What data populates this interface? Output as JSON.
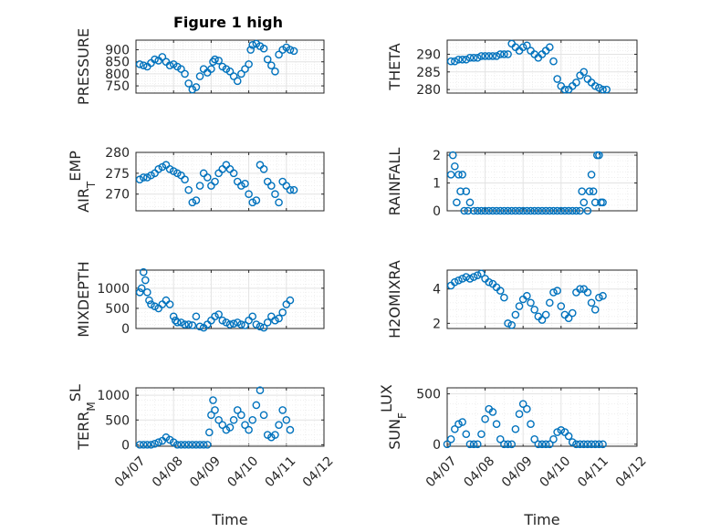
{
  "figure": {
    "title": "Figure 1 high",
    "colors": {
      "marker": "#0072BD",
      "grid": "#e3e3e3",
      "axis": "#262626",
      "background": "#ffffff"
    }
  },
  "chart_data": [
    {
      "type": "scatter",
      "marker": "circle",
      "grid": true,
      "ylabel": "PRESSURE",
      "ylabel_sub": "",
      "xlim": [
        "2013-04-07",
        "2013-04-12"
      ],
      "xticks": [
        "04/07",
        "04/08",
        "04/09",
        "04/10",
        "04/11",
        "04/12"
      ],
      "xtick_labels_visible": false,
      "xlabel": "",
      "ylim": [
        720,
        940
      ],
      "yticks": [
        750,
        800,
        850,
        900
      ],
      "x_days": [
        0.1,
        0.2,
        0.3,
        0.4,
        0.5,
        0.6,
        0.7,
        0.8,
        0.9,
        1.0,
        1.1,
        1.2,
        1.3,
        1.4,
        1.5,
        1.6,
        1.7,
        1.8,
        1.9,
        2.0,
        2.05,
        2.1,
        2.2,
        2.3,
        2.4,
        2.5,
        2.6,
        2.7,
        2.8,
        2.9,
        3.0,
        3.05,
        3.1,
        3.2,
        3.3,
        3.4,
        3.5,
        3.6,
        3.7,
        3.8,
        3.9,
        4.0,
        4.1,
        4.2
      ],
      "y": [
        840,
        835,
        830,
        845,
        860,
        855,
        870,
        850,
        835,
        840,
        830,
        820,
        800,
        760,
        735,
        745,
        790,
        820,
        805,
        820,
        850,
        860,
        855,
        830,
        820,
        810,
        790,
        770,
        800,
        820,
        840,
        900,
        920,
        925,
        915,
        905,
        860,
        835,
        810,
        880,
        900,
        910,
        900,
        895
      ]
    },
    {
      "type": "scatter",
      "marker": "circle",
      "grid": true,
      "ylabel": "THETA",
      "ylabel_sub": "",
      "xlim": [
        "2013-04-07",
        "2013-04-12"
      ],
      "xticks": [
        "04/07",
        "04/08",
        "04/09",
        "04/10",
        "04/11",
        "04/12"
      ],
      "xtick_labels_visible": false,
      "xlabel": "",
      "ylim": [
        279,
        294
      ],
      "yticks": [
        280,
        285,
        290
      ],
      "x_days": [
        0.1,
        0.2,
        0.3,
        0.4,
        0.5,
        0.6,
        0.7,
        0.8,
        0.9,
        1.0,
        1.1,
        1.2,
        1.3,
        1.4,
        1.5,
        1.6,
        1.7,
        1.8,
        1.9,
        2.0,
        2.1,
        2.2,
        2.3,
        2.4,
        2.5,
        2.6,
        2.7,
        2.8,
        2.9,
        3.0,
        3.1,
        3.2,
        3.3,
        3.4,
        3.5,
        3.6,
        3.7,
        3.8,
        3.9,
        4.0,
        4.1,
        4.2
      ],
      "y": [
        288,
        288,
        288.5,
        288.5,
        288.5,
        289,
        289,
        289,
        289.5,
        289.5,
        289.5,
        289.5,
        289.5,
        290,
        290,
        290,
        293,
        292,
        291,
        292,
        292.5,
        291,
        290,
        289,
        290,
        291,
        292,
        288,
        283,
        281,
        280,
        280,
        281,
        282,
        284,
        285,
        283,
        282,
        281,
        280.5,
        280,
        280
      ]
    },
    {
      "type": "scatter",
      "marker": "circle",
      "grid": true,
      "ylabel": "AIR",
      "ylabel_sub": "T",
      "ylabel_suffix": "EMP",
      "xlim": [
        "2013-04-07",
        "2013-04-12"
      ],
      "xticks": [
        "04/07",
        "04/08",
        "04/09",
        "04/10",
        "04/11",
        "04/12"
      ],
      "xtick_labels_visible": false,
      "xlabel": "",
      "ylim": [
        266,
        280
      ],
      "yticks": [
        270,
        275,
        280
      ],
      "x_days": [
        0.1,
        0.2,
        0.3,
        0.4,
        0.5,
        0.6,
        0.7,
        0.8,
        0.9,
        1.0,
        1.1,
        1.2,
        1.3,
        1.4,
        1.5,
        1.6,
        1.7,
        1.8,
        1.9,
        2.0,
        2.1,
        2.2,
        2.3,
        2.4,
        2.5,
        2.6,
        2.7,
        2.8,
        2.9,
        3.0,
        3.1,
        3.2,
        3.3,
        3.4,
        3.5,
        3.6,
        3.7,
        3.8,
        3.9,
        4.0,
        4.1,
        4.2
      ],
      "y": [
        273.5,
        274,
        274,
        274.5,
        275,
        276,
        276.5,
        277,
        276,
        275.5,
        275,
        274.5,
        273.5,
        271,
        268,
        268.5,
        272,
        275,
        274,
        272,
        273,
        275,
        276,
        277,
        276,
        275,
        273,
        272,
        272.5,
        270,
        268,
        268.5,
        277,
        276,
        273,
        272,
        270,
        268,
        273,
        272,
        271,
        271
      ]
    },
    {
      "type": "scatter",
      "marker": "circle",
      "grid": true,
      "ylabel": "RAINFALL",
      "ylabel_sub": "",
      "xlim": [
        "2013-04-07",
        "2013-04-12"
      ],
      "xticks": [
        "04/07",
        "04/08",
        "04/09",
        "04/10",
        "04/11",
        "04/12"
      ],
      "xtick_labels_visible": false,
      "xlabel": "",
      "ylim": [
        0,
        2.1
      ],
      "yticks": [
        0,
        1,
        2
      ],
      "x_days": [
        0.1,
        0.15,
        0.2,
        0.25,
        0.3,
        0.35,
        0.4,
        0.45,
        0.5,
        0.55,
        0.6,
        0.7,
        0.8,
        0.9,
        1.0,
        1.1,
        1.2,
        1.3,
        1.4,
        1.5,
        1.6,
        1.7,
        1.8,
        1.9,
        2.0,
        2.1,
        2.2,
        2.3,
        2.4,
        2.5,
        2.6,
        2.7,
        2.8,
        2.9,
        3.0,
        3.1,
        3.2,
        3.3,
        3.4,
        3.5,
        3.55,
        3.6,
        3.7,
        3.75,
        3.8,
        3.85,
        3.9,
        3.95,
        4.0,
        4.05,
        4.1
      ],
      "y": [
        1.3,
        2.0,
        1.6,
        0.3,
        1.3,
        0.7,
        1.3,
        0,
        0.7,
        0,
        0.3,
        0,
        0,
        0,
        0,
        0,
        0,
        0,
        0,
        0,
        0,
        0,
        0,
        0,
        0,
        0,
        0,
        0,
        0,
        0,
        0,
        0,
        0,
        0,
        0,
        0,
        0,
        0,
        0,
        0,
        0.7,
        0.3,
        0,
        0.7,
        1.3,
        0.7,
        0.3,
        2.0,
        2.0,
        0.3,
        0.3
      ]
    },
    {
      "type": "scatter",
      "marker": "circle",
      "grid": true,
      "ylabel": "MIXDEPTH",
      "ylabel_sub": "",
      "xlim": [
        "2013-04-07",
        "2013-04-12"
      ],
      "xticks": [
        "04/07",
        "04/08",
        "04/09",
        "04/10",
        "04/11",
        "04/12"
      ],
      "xtick_labels_visible": false,
      "xlabel": "",
      "ylim": [
        0,
        1450
      ],
      "yticks": [
        0,
        500,
        1000
      ],
      "x_days": [
        0.1,
        0.15,
        0.2,
        0.25,
        0.3,
        0.35,
        0.4,
        0.5,
        0.6,
        0.7,
        0.8,
        0.9,
        1.0,
        1.05,
        1.1,
        1.2,
        1.3,
        1.4,
        1.5,
        1.6,
        1.7,
        1.8,
        1.9,
        2.0,
        2.1,
        2.2,
        2.3,
        2.4,
        2.5,
        2.6,
        2.7,
        2.8,
        2.9,
        3.0,
        3.1,
        3.2,
        3.3,
        3.4,
        3.5,
        3.6,
        3.7,
        3.8,
        3.9,
        4.0,
        4.1
      ],
      "y": [
        900,
        1000,
        1400,
        1200,
        900,
        700,
        600,
        550,
        500,
        600,
        700,
        600,
        300,
        200,
        150,
        150,
        100,
        100,
        80,
        300,
        50,
        20,
        100,
        200,
        300,
        350,
        200,
        150,
        100,
        120,
        150,
        100,
        80,
        200,
        300,
        100,
        50,
        20,
        150,
        300,
        200,
        250,
        400,
        600,
        700
      ]
    },
    {
      "type": "scatter",
      "marker": "circle",
      "grid": true,
      "ylabel": "H2OMIXRA",
      "ylabel_sub": "",
      "xlim": [
        "2013-04-07",
        "2013-04-12"
      ],
      "xticks": [
        "04/07",
        "04/08",
        "04/09",
        "04/10",
        "04/11",
        "04/12"
      ],
      "xtick_labels_visible": false,
      "xlabel": "",
      "ylim": [
        1.7,
        5.1
      ],
      "yticks": [
        2,
        4
      ],
      "x_days": [
        0.1,
        0.2,
        0.3,
        0.4,
        0.5,
        0.6,
        0.7,
        0.8,
        0.9,
        1.0,
        1.1,
        1.2,
        1.3,
        1.4,
        1.5,
        1.6,
        1.7,
        1.8,
        1.9,
        2.0,
        2.1,
        2.2,
        2.3,
        2.4,
        2.5,
        2.6,
        2.7,
        2.8,
        2.9,
        3.0,
        3.1,
        3.2,
        3.3,
        3.4,
        3.5,
        3.6,
        3.7,
        3.8,
        3.9,
        4.0,
        4.1
      ],
      "y": [
        4.2,
        4.4,
        4.5,
        4.6,
        4.7,
        4.6,
        4.7,
        4.8,
        4.9,
        4.6,
        4.4,
        4.3,
        4.1,
        3.9,
        3.5,
        2.0,
        1.9,
        2.5,
        3.0,
        3.4,
        3.6,
        3.2,
        2.8,
        2.4,
        2.2,
        2.5,
        3.2,
        3.8,
        3.9,
        3.0,
        2.5,
        2.3,
        2.6,
        3.8,
        4.0,
        4.0,
        3.8,
        3.2,
        2.8,
        3.5,
        3.6
      ]
    },
    {
      "type": "scatter",
      "marker": "circle",
      "grid": true,
      "ylabel": "TERR",
      "ylabel_sub": "M",
      "ylabel_suffix": "SL",
      "xlim": [
        "2013-04-07",
        "2013-04-12"
      ],
      "xticks": [
        "04/07",
        "04/08",
        "04/09",
        "04/10",
        "04/11",
        "04/12"
      ],
      "xtick_labels_visible": true,
      "xlabel": "Time",
      "ylim": [
        -30,
        1150
      ],
      "yticks": [
        0,
        500,
        1000
      ],
      "x_days": [
        0.1,
        0.2,
        0.3,
        0.4,
        0.5,
        0.6,
        0.7,
        0.8,
        0.9,
        1.0,
        1.1,
        1.2,
        1.3,
        1.4,
        1.5,
        1.6,
        1.7,
        1.8,
        1.9,
        1.95,
        2.0,
        2.05,
        2.1,
        2.2,
        2.3,
        2.4,
        2.5,
        2.6,
        2.7,
        2.8,
        2.9,
        3.0,
        3.1,
        3.2,
        3.3,
        3.4,
        3.5,
        3.6,
        3.7,
        3.8,
        3.9,
        4.0,
        4.1
      ],
      "y": [
        0,
        0,
        0,
        0,
        20,
        50,
        80,
        150,
        100,
        50,
        0,
        0,
        0,
        0,
        0,
        0,
        0,
        0,
        0,
        250,
        600,
        900,
        700,
        500,
        400,
        300,
        350,
        500,
        700,
        600,
        400,
        300,
        500,
        800,
        1100,
        600,
        200,
        150,
        200,
        400,
        700,
        500,
        300
      ]
    },
    {
      "type": "scatter",
      "marker": "circle",
      "grid": true,
      "ylabel": "SUN",
      "ylabel_sub": "F",
      "ylabel_suffix": "LUX",
      "xlim": [
        "2013-04-07",
        "2013-04-12"
      ],
      "xticks": [
        "04/07",
        "04/08",
        "04/09",
        "04/10",
        "04/11",
        "04/12"
      ],
      "xtick_labels_visible": true,
      "xlabel": "Time",
      "ylim": [
        -20,
        560
      ],
      "yticks": [
        0,
        500
      ],
      "x_days": [
        0.0,
        0.1,
        0.2,
        0.3,
        0.4,
        0.5,
        0.6,
        0.7,
        0.8,
        0.9,
        1.0,
        1.1,
        1.2,
        1.3,
        1.4,
        1.5,
        1.6,
        1.7,
        1.8,
        1.9,
        2.0,
        2.1,
        2.2,
        2.3,
        2.4,
        2.5,
        2.6,
        2.7,
        2.8,
        2.9,
        3.0,
        3.1,
        3.2,
        3.3,
        3.4,
        3.5,
        3.6,
        3.7,
        3.8,
        3.9,
        4.0,
        4.1
      ],
      "y": [
        0,
        50,
        150,
        200,
        220,
        100,
        0,
        0,
        0,
        100,
        250,
        350,
        320,
        200,
        50,
        0,
        0,
        0,
        150,
        300,
        400,
        350,
        200,
        50,
        0,
        0,
        0,
        0,
        50,
        120,
        140,
        120,
        80,
        20,
        0,
        0,
        0,
        0,
        0,
        0,
        0,
        0
      ]
    }
  ]
}
